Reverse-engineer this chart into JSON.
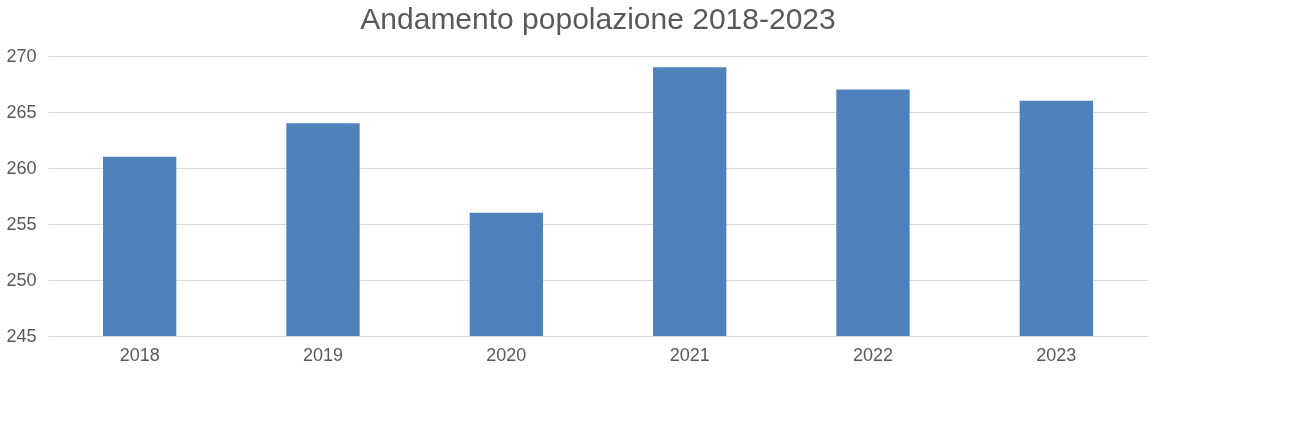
{
  "chart_data": {
    "type": "bar",
    "title": "Andamento popolazione 2018-2023",
    "categories": [
      "2018",
      "2019",
      "2020",
      "2021",
      "2022",
      "2023"
    ],
    "values": [
      261,
      264,
      256,
      269,
      267,
      266
    ],
    "color": "#4f81bd",
    "ylim": [
      245,
      270
    ],
    "yticks": [
      245,
      250,
      255,
      260,
      265,
      270
    ],
    "grid": "y"
  }
}
